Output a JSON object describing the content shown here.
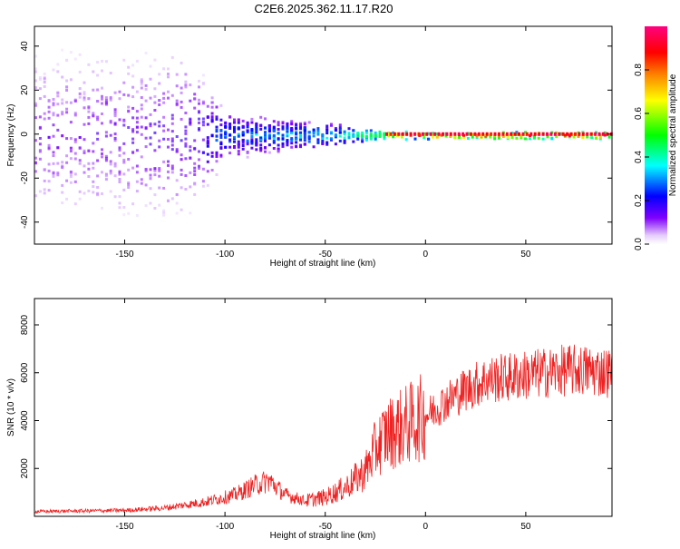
{
  "title": "C2E6.2025.362.11.17.R20",
  "chart_data": [
    {
      "type": "heatmap",
      "xlabel": "Height of straight line (km)",
      "ylabel": "Frequency (Hz)",
      "xlim": [
        -195,
        93
      ],
      "ylim": [
        -50,
        49
      ],
      "xticks": [
        -150,
        -100,
        -50,
        0,
        50
      ],
      "yticks": [
        -40,
        -20,
        0,
        20,
        40
      ],
      "colorbar": {
        "label": "Normalized spectral amplitude",
        "range": [
          0,
          1
        ],
        "ticks": [
          "0.0",
          "0.2",
          "0.4",
          "0.6",
          "0.8"
        ],
        "tick_values": [
          0.0,
          0.2,
          0.4,
          0.6,
          0.8
        ]
      },
      "colormap": [
        "#ffffff",
        "#8000ff",
        "#0000ff",
        "#00ffff",
        "#00ff00",
        "#ffff00",
        "#ff8000",
        "#ff0000",
        "#ff0080"
      ],
      "description_points": [
        {
          "x": -180,
          "width_hz": 45,
          "peak_amp": 0.15
        },
        {
          "x": -120,
          "width_hz": 45,
          "peak_amp": 0.2
        },
        {
          "x": -100,
          "width_hz": 12,
          "peak_amp": 0.35
        },
        {
          "x": -70,
          "width_hz": 8,
          "peak_amp": 0.4
        },
        {
          "x": -40,
          "width_hz": 5,
          "peak_amp": 0.5
        },
        {
          "x": -20,
          "width_hz": 2,
          "peak_amp": 0.95
        },
        {
          "x": 50,
          "width_hz": 2,
          "peak_amp": 1.0
        },
        {
          "x": 90,
          "width_hz": 2,
          "peak_amp": 1.0
        }
      ]
    },
    {
      "type": "line",
      "xlabel": "Height of straight line (km)",
      "ylabel": "SNR (10 * v/v)",
      "xlim": [
        -195,
        93
      ],
      "ylim": [
        0,
        9100
      ],
      "xticks": [
        -150,
        -100,
        -50,
        0,
        50
      ],
      "yticks": [
        2000,
        4000,
        6000,
        8000
      ],
      "color": "#ee2222",
      "trend": {
        "x": [
          -195,
          -150,
          -130,
          -110,
          -95,
          -85,
          -78,
          -70,
          -60,
          -50,
          -40,
          -30,
          -25,
          -20,
          -10,
          0,
          10,
          20,
          30,
          40,
          50,
          60,
          70,
          80,
          93
        ],
        "y": [
          200,
          250,
          350,
          600,
          900,
          1300,
          1500,
          900,
          650,
          800,
          1200,
          1900,
          2800,
          3400,
          3800,
          4200,
          4800,
          5300,
          5700,
          5800,
          5900,
          6000,
          6100,
          6100,
          6000
        ]
      }
    }
  ]
}
